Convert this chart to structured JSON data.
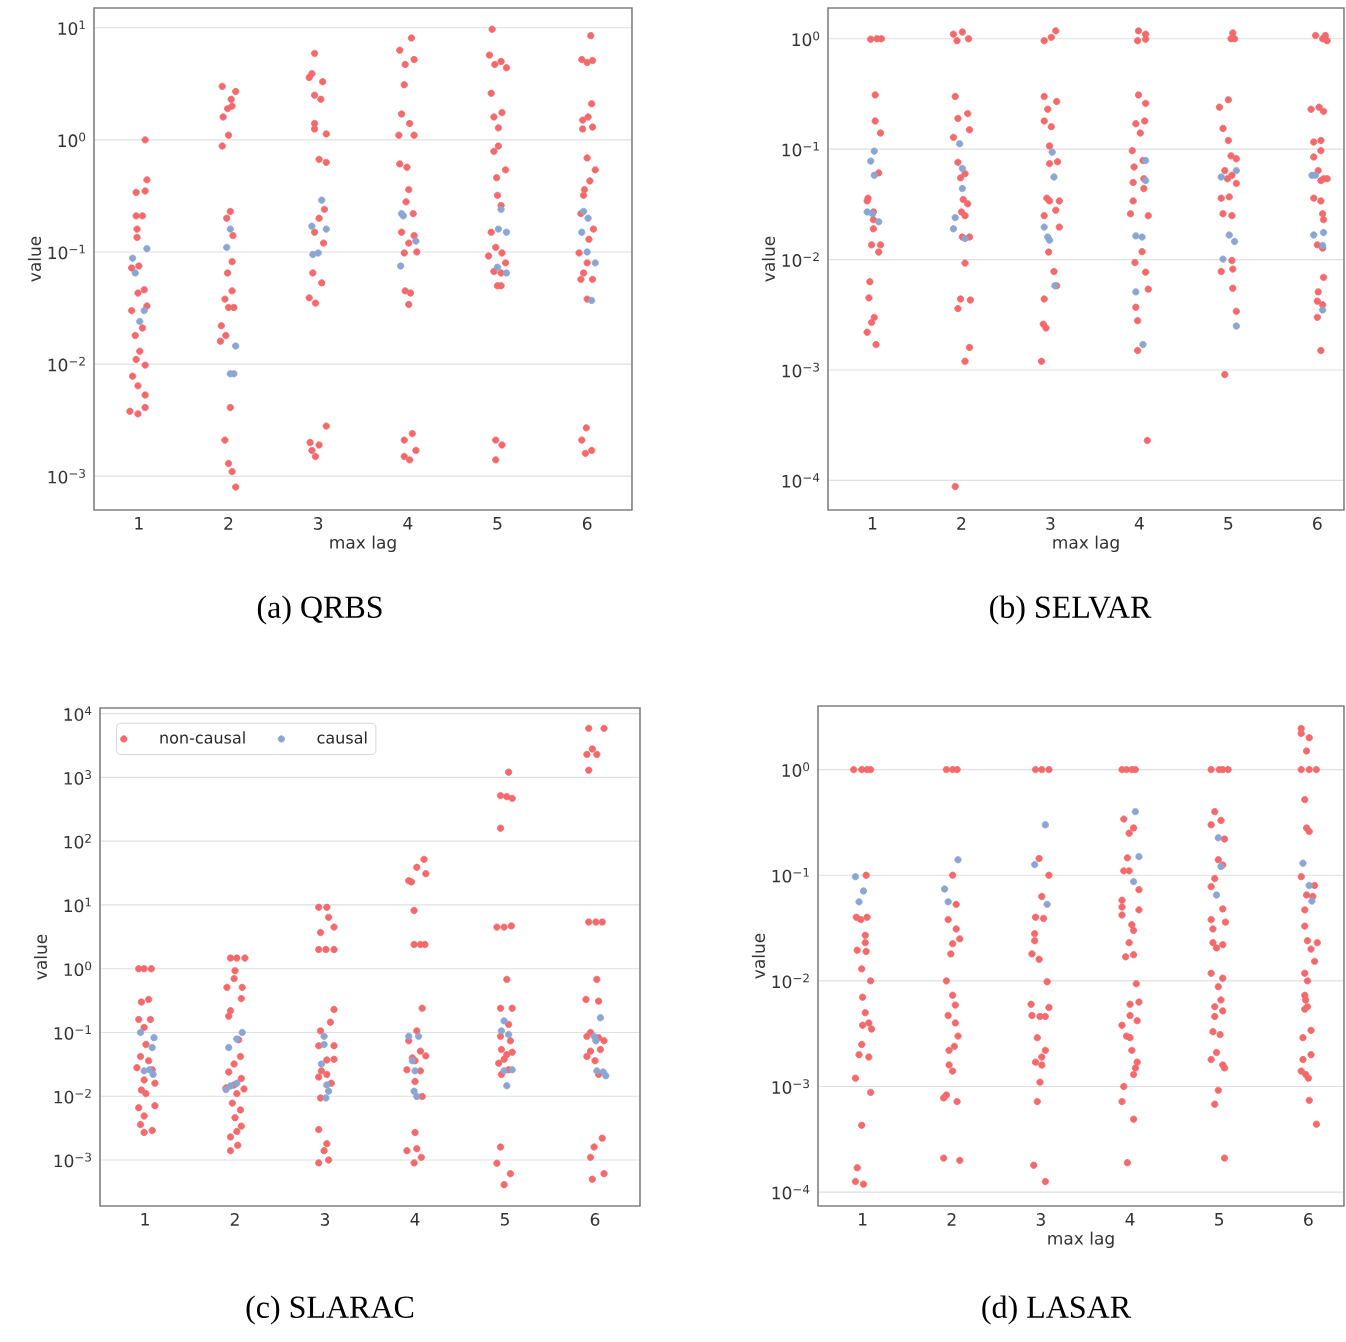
{
  "chart_data": [
    {
      "type": "scatter",
      "title": "(a) QRBS",
      "xlabel": "max lag",
      "ylabel": "value",
      "log": "y",
      "grid": "y",
      "xlim": [
        0.5,
        6.5
      ],
      "xticks": [
        1,
        2,
        3,
        4,
        5,
        6
      ],
      "ylim": [
        0.0005,
        15
      ],
      "yticks": [
        {
          "value": 0.001,
          "label": "10$^{−3}$"
        },
        {
          "value": 0.01,
          "label": "10$^{−2}$"
        },
        {
          "value": 0.1,
          "label": "10$^{−1}$"
        },
        {
          "value": 1,
          "label": "10$^{0}$"
        },
        {
          "value": 10,
          "label": "10$^{1}$"
        }
      ],
      "series": [
        {
          "color": "#f4696b",
          "x": [
            1.07,
            1.09,
            0.97,
            1.07,
            0.97,
            1.04,
            0.98,
            0.98,
            0.92,
            1.0,
            0.99,
            1.06,
            0.92,
            1.09,
            1.04,
            0.96,
            1.01,
            0.97,
            1.07,
            0.93,
            0.99,
            1.07,
            1.07,
            0.9,
            0.99,
            1.93,
            2.08,
            2.03,
            1.99,
            2.04,
            1.94,
            2.0,
            1.93,
            1.98,
            2.02,
            2.05,
            2.04,
            1.99,
            2.04,
            1.96,
            2.0,
            2.06,
            1.92,
            1.97,
            1.91,
            2.02,
            1.96,
            2.0,
            2.04,
            2.08,
            2.96,
            2.9,
            2.93,
            3.05,
            2.96,
            3.03,
            2.96,
            2.96,
            3.09,
            3.01,
            3.09,
            3.07,
            3.01,
            2.96,
            3.06,
            2.94,
            3.04,
            2.9,
            2.97,
            3.09,
            2.91,
            3.01,
            2.93,
            2.97,
            4.04,
            3.91,
            3.97,
            4.07,
            3.96,
            3.93,
            4.02,
            3.9,
            4.07,
            3.91,
            3.99,
            4.01,
            3.98,
            4.06,
            3.93,
            4.07,
            4.01,
            3.96,
            4.1,
            3.97,
            4.03,
            4.01,
            3.96,
            4.05,
            4.09,
            3.96,
            4.02,
            4.94,
            4.91,
            4.97,
            5.04,
            5.1,
            4.93,
            4.96,
            5.05,
            5.01,
            4.96,
            5.01,
            5.09,
            4.99,
            5.0,
            5.04,
            4.93,
            4.98,
            4.9,
            5.05,
            5.09,
            4.96,
            5.04,
            5.0,
            5.04,
            4.98,
            5.05,
            4.98,
            6.04,
            5.94,
            6.06,
            6.0,
            6.05,
            6.01,
            5.95,
            6.06,
            5.95,
            6.0,
            6.09,
            6.03,
            5.97,
            5.96,
            5.93,
            6.07,
            6.02,
            5.91,
            6.0,
            5.96,
            6.06,
            5.93,
            6.0,
            5.99,
            5.94,
            6.05,
            5.98
          ],
          "values": [
            1.0,
            0.44,
            0.34,
            0.35,
            0.21,
            0.21,
            0.16,
            0.135,
            0.072,
            0.075,
            0.043,
            0.046,
            0.03,
            0.033,
            0.021,
            0.018,
            0.013,
            0.011,
            0.0098,
            0.0078,
            0.0064,
            0.0053,
            0.0041,
            0.0038,
            0.0036,
            3.0,
            2.7,
            2.3,
            1.9,
            2.0,
            1.6,
            1.1,
            0.88,
            0.2,
            0.23,
            0.14,
            0.082,
            0.065,
            0.045,
            0.038,
            0.032,
            0.032,
            0.022,
            0.018,
            0.016,
            0.0041,
            0.0021,
            0.0013,
            0.0011,
            0.0008,
            5.9,
            3.6,
            3.9,
            3.3,
            2.5,
            2.3,
            1.4,
            1.25,
            1.13,
            0.67,
            0.63,
            0.24,
            0.2,
            0.15,
            0.12,
            0.065,
            0.053,
            0.039,
            0.035,
            0.0028,
            0.002,
            0.0019,
            0.0017,
            0.0015,
            8.1,
            6.3,
            4.7,
            5.2,
            3.1,
            1.7,
            1.4,
            1.1,
            1.1,
            0.61,
            0.57,
            0.36,
            0.28,
            0.22,
            0.15,
            0.14,
            0.12,
            0.098,
            0.1,
            0.045,
            0.043,
            0.034,
            0.0021,
            0.0024,
            0.0017,
            0.0015,
            0.0014,
            9.7,
            5.7,
            4.7,
            5.0,
            4.4,
            2.6,
            1.6,
            1.75,
            1.28,
            0.79,
            0.88,
            0.54,
            0.46,
            0.32,
            0.26,
            0.15,
            0.11,
            0.092,
            0.098,
            0.08,
            0.067,
            0.065,
            0.05,
            0.05,
            0.0021,
            0.0019,
            0.0014,
            8.5,
            5.2,
            5.1,
            4.9,
            2.1,
            1.6,
            1.5,
            1.3,
            1.25,
            0.69,
            0.54,
            0.43,
            0.36,
            0.32,
            0.22,
            0.16,
            0.13,
            0.098,
            0.08,
            0.065,
            0.057,
            0.057,
            0.038,
            0.0027,
            0.0021,
            0.0017,
            0.0016
          ]
        },
        {
          "color": "#8ca6d3",
          "x": [
            0.93,
            0.96,
            1.09,
            1.01,
            1.06,
            2.02,
            1.98,
            2.08,
            2.06,
            2.02,
            3.04,
            2.93,
            3.09,
            2.94,
            3.0,
            3.93,
            3.92,
            4.09,
            3.95,
            5.04,
            5.01,
            5.1,
            5.0,
            5.1,
            5.96,
            6.01,
            5.94,
            6.0,
            6.09,
            6.05
          ],
          "values": [
            0.088,
            0.065,
            0.107,
            0.024,
            0.03,
            0.16,
            0.11,
            0.0145,
            0.0082,
            0.0082,
            0.29,
            0.17,
            0.16,
            0.095,
            0.098,
            0.22,
            0.075,
            0.125,
            0.21,
            0.24,
            0.16,
            0.15,
            0.073,
            0.065,
            0.23,
            0.2,
            0.15,
            0.1,
            0.08,
            0.037
          ]
        }
      ]
    },
    {
      "type": "scatter",
      "title": "(b) SELVAR",
      "xlabel": "max lag",
      "ylabel": "value",
      "log": "y",
      "grid": "y",
      "xlim": [
        0.5,
        6.3
      ],
      "xticks": [
        1,
        2,
        3,
        4,
        5,
        6
      ],
      "ylim": [
        5.4e-05,
        1.9
      ],
      "yticks": [
        {
          "value": 0.0001,
          "label": "10$^{−4}$"
        },
        {
          "value": 0.001,
          "label": "10$^{−3}$"
        },
        {
          "value": 0.01,
          "label": "10$^{−2}$"
        },
        {
          "value": 0.1,
          "label": "10$^{−1}$"
        },
        {
          "value": 1,
          "label": "10$^{0}$"
        }
      ],
      "series": [
        {
          "color": "#f4696b",
          "x": [
            0.98,
            1.05,
            1.1,
            1.03,
            1.03,
            1.09,
            1.07,
            0.94,
            0.95,
            1.01,
            1.01,
            1.01,
            0.99,
            1.09,
            1.07,
            0.97,
            0.96,
            1.02,
            0.99,
            0.94,
            1.04,
            1.91,
            2.01,
            2.08,
            1.95,
            1.93,
            1.96,
            2.07,
            2.09,
            1.91,
            1.96,
            1.99,
            2.04,
            2.02,
            2.07,
            2.0,
            2.04,
            2.01,
            2.09,
            2.04,
            1.99,
            1.96,
            2.1,
            2.09,
            2.04,
            1.93,
            2.93,
            3.01,
            3.06,
            2.93,
            3.07,
            2.97,
            2.93,
            3.01,
            2.99,
            3.08,
            2.99,
            2.96,
            2.99,
            3.1,
            3.06,
            2.93,
            3.1,
            2.98,
            3.04,
            3.07,
            2.93,
            2.92,
            2.95,
            2.9,
            3.99,
            4.07,
            3.98,
            4.07,
            3.99,
            4.07,
            3.96,
            4.06,
            4.01,
            3.92,
            4.04,
            3.94,
            4.05,
            3.93,
            4.05,
            3.93,
            3.9,
            4.1,
            3.95,
            4.03,
            4.07,
            4.1,
            3.96,
            3.98,
            3.98,
            4.09,
            5.05,
            5.03,
            5.07,
            4.9,
            5.0,
            4.94,
            5.0,
            5.03,
            5.09,
            4.96,
            5.04,
            4.99,
            5.09,
            4.92,
            5.01,
            4.94,
            5.04,
            5.04,
            5.05,
            4.92,
            5.05,
            5.09,
            4.96,
            5.98,
            6.06,
            6.09,
            6.11,
            5.93,
            6.02,
            6.07,
            5.96,
            6.04,
            5.96,
            6.04,
            6.01,
            6.07,
            6.04,
            6.11,
            5.96,
            6.04,
            6.06,
            6.07,
            6.0,
            6.06,
            6.07,
            6.01,
            6.0,
            6.06,
            6.0,
            6.04
          ],
          "values": [
            0.99,
            1.0,
            1.0,
            0.31,
            0.18,
            0.14,
            0.061,
            0.034,
            0.036,
            0.027,
            0.023,
            0.019,
            0.0136,
            0.0136,
            0.0117,
            0.0063,
            0.0045,
            0.003,
            0.0027,
            0.0022,
            0.0017,
            1.1,
            1.15,
            1.0,
            0.96,
            0.3,
            0.19,
            0.21,
            0.15,
            0.128,
            0.076,
            0.055,
            0.06,
            0.035,
            0.032,
            0.027,
            0.025,
            0.016,
            0.016,
            0.0093,
            0.0044,
            0.0036,
            0.0043,
            0.0016,
            0.0012,
            8.8e-05,
            0.96,
            1.03,
            1.18,
            0.3,
            0.27,
            0.23,
            0.18,
            0.16,
            0.107,
            0.077,
            0.074,
            0.036,
            0.034,
            0.034,
            0.028,
            0.025,
            0.0197,
            0.0117,
            0.0078,
            0.0058,
            0.0044,
            0.0026,
            0.0024,
            0.0012,
            1.18,
            1.1,
            0.96,
            0.99,
            0.31,
            0.26,
            0.17,
            0.18,
            0.14,
            0.097,
            0.079,
            0.069,
            0.054,
            0.05,
            0.044,
            0.034,
            0.026,
            0.025,
            0.0094,
            0.0118,
            0.0077,
            0.0054,
            0.0037,
            0.0028,
            0.0015,
            0.00023,
            1.13,
            1.0,
            1.0,
            0.24,
            0.28,
            0.154,
            0.12,
            0.087,
            0.082,
            0.064,
            0.058,
            0.054,
            0.049,
            0.036,
            0.037,
            0.026,
            0.025,
            0.0098,
            0.0082,
            0.0078,
            0.0055,
            0.0034,
            0.00091,
            1.07,
            1.0,
            1.07,
            0.96,
            0.23,
            0.24,
            0.22,
            0.116,
            0.12,
            0.085,
            0.097,
            0.064,
            0.054,
            0.052,
            0.054,
            0.036,
            0.034,
            0.026,
            0.023,
            0.0136,
            0.0127,
            0.0069,
            0.0051,
            0.0042,
            0.0039,
            0.003,
            0.0015
          ]
        },
        {
          "color": "#8ca6d3",
          "x": [
            1.02,
            0.98,
            1.02,
            0.94,
            1.0,
            1.07,
            1.98,
            2.01,
            2.01,
            1.93,
            1.91,
            2.04,
            3.02,
            3.04,
            2.93,
            2.97,
            2.99,
            3.05,
            4.07,
            4.07,
            3.96,
            4.03,
            3.96,
            4.04,
            4.92,
            5.09,
            5.01,
            5.07,
            4.94,
            5.09,
            5.94,
            5.98,
            5.96,
            6.07,
            6.06,
            6.06
          ],
          "values": [
            0.096,
            0.078,
            0.058,
            0.027,
            0.026,
            0.022,
            0.112,
            0.067,
            0.044,
            0.024,
            0.019,
            0.0155,
            0.094,
            0.056,
            0.0197,
            0.016,
            0.015,
            0.0058,
            0.079,
            0.052,
            0.0164,
            0.016,
            0.0051,
            0.0017,
            0.056,
            0.064,
            0.0167,
            0.0146,
            0.0101,
            0.0025,
            0.058,
            0.058,
            0.0167,
            0.0176,
            0.0134,
            0.0035
          ]
        }
      ]
    },
    {
      "type": "scatter",
      "title": "(c) SLARAC",
      "ylabel": "value",
      "log": "y",
      "grid": "y",
      "legend": "top left",
      "xlim": [
        0.5,
        6.5
      ],
      "xticks": [
        1,
        2,
        3,
        4,
        5,
        6
      ],
      "ylim": [
        0.00019,
        12300
      ],
      "yticks": [
        {
          "value": 0.001,
          "label": "10$^{−3}$"
        },
        {
          "value": 0.01,
          "label": "10$^{−2}$"
        },
        {
          "value": 0.1,
          "label": "10$^{−1}$"
        },
        {
          "value": 1,
          "label": "10$^{0}$"
        },
        {
          "value": 10,
          "label": "10$^{1}$"
        },
        {
          "value": 100,
          "label": "10$^{2}$"
        },
        {
          "value": 1000,
          "label": "10$^{3}$"
        },
        {
          "value": 10000,
          "label": "10$^{4}$"
        }
      ],
      "series": [
        {
          "name": "non-causal",
          "color": "#f4696b",
          "x": [
            0.93,
            0.99,
            1.07,
            1.04,
            0.96,
            0.93,
            1.06,
            0.99,
            1.01,
            0.95,
            1.04,
            0.91,
            1.08,
            0.99,
            1.11,
            0.96,
            1.01,
            1.11,
            0.93,
            0.99,
            0.95,
            1.08,
            0.99,
            1.95,
            2.02,
            2.11,
            2.0,
            1.99,
            1.91,
            2.08,
            2.07,
            1.95,
            1.93,
            2.04,
            2.06,
            1.99,
            1.93,
            2.07,
            1.99,
            1.9,
            2.1,
            2.02,
            1.97,
            2.06,
            2.0,
            2.07,
            2.02,
            1.95,
            2.03,
            1.95,
            2.93,
            3.02,
            3.04,
            3.1,
            2.95,
            2.93,
            3.01,
            3.1,
            3.1,
            3.06,
            2.95,
            3.1,
            2.93,
            3.02,
            3.1,
            2.96,
            3.02,
            2.93,
            3.07,
            2.95,
            2.93,
            3.02,
            2.99,
            3.04,
            2.93,
            4.1,
            4.02,
            3.93,
            3.96,
            4.12,
            3.99,
            3.99,
            4.06,
            4.11,
            4.08,
            4.02,
            3.93,
            4.06,
            3.97,
            4.12,
            4.0,
            3.91,
            4.06,
            4.0,
            4.08,
            4.0,
            3.91,
            4.02,
            4.07,
            3.99,
            5.04,
            4.95,
            5.02,
            5.08,
            4.95,
            4.91,
            4.99,
            5.07,
            5.02,
            4.95,
            5.08,
            5.04,
            4.95,
            5.06,
            4.96,
            5.02,
            5.08,
            4.99,
            4.93,
            5.04,
            4.96,
            4.95,
            4.91,
            5.06,
            4.99,
            5.93,
            6.1,
            5.97,
            5.91,
            6.02,
            5.93,
            5.93,
            6.01,
            6.08,
            6.02,
            5.9,
            6.04,
            5.95,
            5.91,
            6.04,
            6.1,
            5.95,
            6.06,
            6.0,
            5.91,
            6.04,
            6.08,
            5.99,
            5.95,
            6.1,
            5.97
          ],
          "values": [
            1.0,
            1.0,
            1.0,
            0.33,
            0.3,
            0.16,
            0.16,
            0.12,
            0.065,
            0.042,
            0.036,
            0.028,
            0.026,
            0.018,
            0.016,
            0.0125,
            0.011,
            0.0071,
            0.0066,
            0.0049,
            0.0036,
            0.0029,
            0.0027,
            1.47,
            1.47,
            1.47,
            0.93,
            0.7,
            0.51,
            0.51,
            0.34,
            0.22,
            0.18,
            0.077,
            0.042,
            0.032,
            0.024,
            0.019,
            0.015,
            0.0135,
            0.013,
            0.011,
            0.0078,
            0.0061,
            0.0046,
            0.0034,
            0.0028,
            0.0023,
            0.0017,
            0.0014,
            9.2,
            9.2,
            6.4,
            4.5,
            3.7,
            2.0,
            2.0,
            2.0,
            0.23,
            0.145,
            0.106,
            0.062,
            0.062,
            0.037,
            0.038,
            0.025,
            0.022,
            0.02,
            0.016,
            0.0094,
            0.003,
            0.0018,
            0.0014,
            0.001,
            0.0009,
            52,
            39,
            24,
            23,
            31,
            8.2,
            2.4,
            2.4,
            2.4,
            0.24,
            0.106,
            0.074,
            0.051,
            0.04,
            0.043,
            0.036,
            0.026,
            0.025,
            0.017,
            0.0099,
            0.0027,
            0.0014,
            0.0015,
            0.0011,
            0.0009,
            1210,
            520,
            500,
            470,
            160,
            4.5,
            4.5,
            4.7,
            0.68,
            0.24,
            0.24,
            0.134,
            0.087,
            0.074,
            0.054,
            0.045,
            0.049,
            0.038,
            0.033,
            0.026,
            0.022,
            0.0016,
            0.00089,
            0.00061,
            0.00041,
            5900,
            5900,
            2800,
            2300,
            2300,
            1300,
            5.4,
            5.4,
            5.4,
            0.68,
            0.33,
            0.31,
            0.1,
            0.087,
            0.083,
            0.074,
            0.051,
            0.054,
            0.036,
            0.042,
            0.022,
            0.0022,
            0.0016,
            0.0011,
            0.00061,
            0.0005
          ]
        },
        {
          "name": "causal",
          "color": "#8ca6d3",
          "x": [
            0.95,
            1.1,
            1.08,
            1.05,
            1.09,
            0.99,
            1.93,
            2.08,
            2.02,
            1.9,
            2.02,
            1.95,
            2.99,
            2.99,
            2.96,
            3.02,
            3.04,
            3.01,
            3.93,
            4.04,
            3.97,
            4.0,
            3.99,
            4.02,
            4.96,
            5.04,
            4.99,
            4.99,
            5.08,
            5.02,
            6.06,
            5.99,
            6.01,
            6.09,
            6.12,
            6.02
          ],
          "values": [
            0.1,
            0.083,
            0.058,
            0.026,
            0.022,
            0.025,
            0.058,
            0.1,
            0.079,
            0.0127,
            0.016,
            0.0145,
            0.087,
            0.065,
            0.032,
            0.015,
            0.012,
            0.0094,
            0.087,
            0.087,
            0.036,
            0.025,
            0.012,
            0.0099,
            0.106,
            0.093,
            0.152,
            0.025,
            0.026,
            0.0146,
            0.17,
            0.087,
            0.074,
            0.024,
            0.021,
            0.025
          ]
        }
      ]
    },
    {
      "type": "scatter",
      "title": "(d) LASAR",
      "xlabel": "max lag",
      "ylabel": "value",
      "log": "y",
      "grid": "y",
      "xlim": [
        0.5,
        6.4
      ],
      "xticks": [
        1,
        2,
        3,
        4,
        5,
        6
      ],
      "ylim": [
        7.4e-05,
        4
      ],
      "yticks": [
        {
          "value": 0.0001,
          "label": "10$^{−4}$"
        },
        {
          "value": 0.001,
          "label": "10$^{−3}$"
        },
        {
          "value": 0.01,
          "label": "10$^{−2}$"
        },
        {
          "value": 0.1,
          "label": "10$^{−1}$"
        },
        {
          "value": 1,
          "label": "10$^{0}$"
        }
      ],
      "series": [
        {
          "color": "#f4696b",
          "x": [
            0.9,
            0.99,
            1.05,
            1.09,
            1.04,
            0.93,
            1.05,
            0.98,
            1.03,
            1.03,
            0.94,
            1.04,
            0.99,
            1.09,
            1.0,
            1.03,
            1.07,
            1.0,
            1.1,
            0.99,
            0.96,
            1.07,
            0.92,
            1.09,
            0.99,
            0.94,
            0.92,
            1.01,
            1.94,
            2.01,
            2.06,
            2.01,
            2.05,
            1.96,
            2.05,
            2.09,
            2.01,
            1.99,
            1.94,
            2.01,
            2.04,
            1.96,
            2.04,
            2.07,
            2.03,
            1.97,
            1.97,
            2.01,
            1.94,
            1.91,
            2.06,
            1.91,
            2.09,
            2.94,
            3.01,
            3.09,
            2.98,
            3.09,
            3.01,
            2.94,
            3.03,
            2.93,
            2.93,
            2.9,
            2.98,
            3.07,
            2.89,
            3.09,
            2.9,
            2.99,
            3.05,
            2.96,
            3.05,
            3.01,
            2.94,
            3.01,
            2.99,
            2.96,
            2.92,
            3.05,
            3.91,
            3.96,
            4.02,
            4.06,
            3.93,
            4.04,
            3.99,
            3.97,
            3.93,
            3.99,
            4.1,
            3.91,
            3.91,
            4.1,
            3.91,
            4.02,
            4.04,
            3.99,
            4.04,
            3.95,
            4.07,
            4.1,
            4.0,
            4.0,
            4.08,
            3.91,
            3.96,
            4.0,
            4.02,
            4.08,
            4.06,
            4.04,
            3.93,
            3.91,
            4.04,
            3.97,
            4.91,
            5.0,
            5.04,
            5.1,
            4.95,
            5.02,
            4.91,
            5.06,
            4.99,
            5.04,
            4.95,
            4.91,
            5.04,
            4.91,
            5.07,
            4.93,
            4.93,
            4.97,
            5.04,
            4.91,
            5.04,
            4.99,
            4.95,
            5.04,
            5.02,
            4.95,
            4.93,
            5.01,
            4.97,
            4.91,
            5.04,
            5.06,
            4.99,
            4.95,
            5.06,
            5.92,
            5.92,
            6.01,
            5.98,
            5.92,
            6.01,
            6.09,
            5.96,
            5.98,
            6.01,
            5.92,
            6.07,
            5.98,
            6.05,
            5.96,
            5.96,
            5.99,
            6.1,
            6.03,
            6.07,
            5.96,
            5.99,
            5.96,
            5.97,
            5.99,
            5.96,
            6.03,
            5.94,
            6.03,
            5.94,
            5.97,
            6.0,
            5.92,
            6.01,
            6.09
          ],
          "values": [
            1.0,
            1.0,
            1.0,
            1.0,
            0.1,
            0.04,
            0.04,
            0.038,
            0.027,
            0.023,
            0.0195,
            0.019,
            0.013,
            0.01,
            0.007,
            0.005,
            0.004,
            0.0038,
            0.0035,
            0.0025,
            0.002,
            0.0019,
            0.0012,
            0.00088,
            0.00043,
            0.00017,
            0.000126,
            0.000119,
            1.0,
            1.0,
            1.0,
            0.1,
            0.053,
            0.038,
            0.031,
            0.025,
            0.0225,
            0.018,
            0.01,
            0.0073,
            0.0059,
            0.0047,
            0.004,
            0.003,
            0.0024,
            0.0022,
            0.0016,
            0.0014,
            0.00083,
            0.00078,
            0.00072,
            0.00021,
            0.0002,
            1.0,
            1.0,
            1.0,
            0.144,
            0.1,
            0.063,
            0.04,
            0.039,
            0.028,
            0.024,
            0.018,
            0.016,
            0.0098,
            0.006,
            0.0056,
            0.0047,
            0.0046,
            0.0046,
            0.0029,
            0.0022,
            0.0019,
            0.0017,
            0.0016,
            0.0011,
            0.00072,
            0.00018,
            0.000126,
            1.0,
            1.0,
            1.0,
            1.0,
            0.34,
            0.28,
            0.25,
            0.146,
            0.11,
            0.11,
            0.073,
            0.058,
            0.05,
            0.047,
            0.042,
            0.034,
            0.03,
            0.023,
            0.0177,
            0.0169,
            0.0094,
            0.0063,
            0.006,
            0.0047,
            0.0042,
            0.0038,
            0.003,
            0.0029,
            0.0022,
            0.0017,
            0.0015,
            0.0013,
            0.001,
            0.00072,
            0.00049,
            0.00019,
            1.0,
            1.0,
            1.0,
            1.0,
            0.4,
            0.33,
            0.3,
            0.22,
            0.14,
            0.125,
            0.093,
            0.078,
            0.048,
            0.038,
            0.036,
            0.031,
            0.023,
            0.0205,
            0.022,
            0.0118,
            0.0106,
            0.0088,
            0.0057,
            0.0052,
            0.0066,
            0.0046,
            0.0033,
            0.0031,
            0.0021,
            0.0018,
            0.0016,
            0.0015,
            0.00092,
            0.00068,
            0.00021,
            2.45,
            2.2,
            2.0,
            1.5,
            1.0,
            1.0,
            1.0,
            0.52,
            0.28,
            0.26,
            0.097,
            0.08,
            0.065,
            0.063,
            0.047,
            0.033,
            0.024,
            0.023,
            0.02,
            0.0153,
            0.0118,
            0.01,
            0.0073,
            0.0066,
            0.0057,
            0.0054,
            0.0034,
            0.0029,
            0.002,
            0.0018,
            0.0013,
            0.0012,
            0.0014,
            0.00074,
            0.00044
          ]
        },
        {
          "color": "#8ca6d3",
          "x": [
            0.92,
            1.01,
            0.96,
            2.07,
            1.92,
            1.96,
            3.05,
            2.93,
            3.07,
            4.06,
            4.1,
            4.04,
            4.99,
            5.02,
            4.97,
            5.94,
            6.01,
            6.04
          ],
          "values": [
            0.097,
            0.071,
            0.056,
            0.14,
            0.074,
            0.056,
            0.3,
            0.126,
            0.053,
            0.4,
            0.15,
            0.087,
            0.226,
            0.121,
            0.065,
            0.13,
            0.08,
            0.057
          ]
        }
      ]
    }
  ]
}
